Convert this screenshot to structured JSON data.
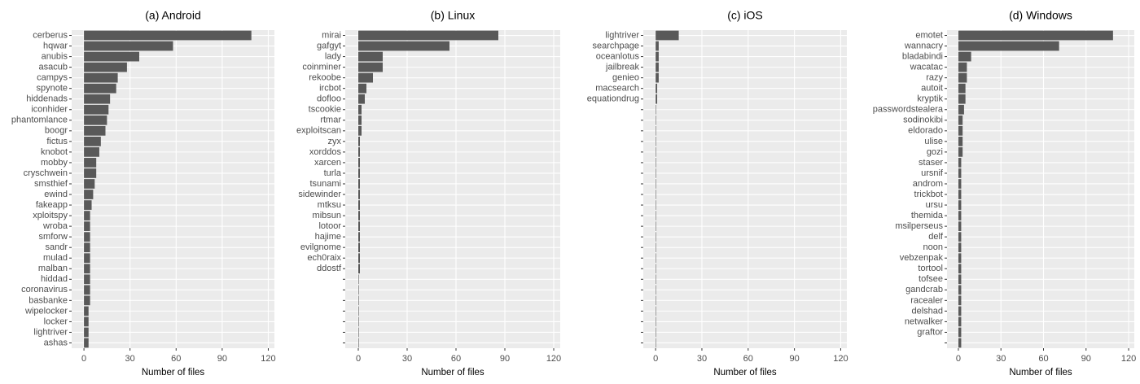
{
  "chart_data": [
    {
      "type": "bar",
      "orientation": "horizontal",
      "title": "(a) Android",
      "x_label": "Number of files",
      "color": "#595959",
      "background": "#ebebeb",
      "grid": true,
      "categories": [
        "cerberus",
        "hqwar",
        "anubis",
        "asacub",
        "campys",
        "spynote",
        "hiddenads",
        "iconhider",
        "phantomlance",
        "boogr",
        "fictus",
        "knobot",
        "mobby",
        "cryschwein",
        "smsthief",
        "ewind",
        "fakeapp",
        "xploitspy",
        "wroba",
        "smforw",
        "sandr",
        "mulad",
        "malban",
        "hiddad",
        "coronavirus",
        "basbanke",
        "wipelocker",
        "locker",
        "lightriver",
        "ashas"
      ],
      "values": [
        109,
        58,
        36,
        28,
        22,
        21,
        17,
        16,
        15,
        14,
        11,
        10,
        8,
        8,
        7,
        6,
        5,
        4,
        4,
        4,
        4,
        4,
        4,
        4,
        4,
        4,
        3,
        3,
        3,
        3
      ],
      "xlim": [
        -8,
        124
      ],
      "xticks": [
        0,
        30,
        60,
        90,
        120
      ]
    },
    {
      "type": "bar",
      "orientation": "horizontal",
      "title": "(b) Linux",
      "x_label": "Number of files",
      "color": "#595959",
      "background": "#ebebeb",
      "grid": true,
      "categories": [
        "mirai",
        "gafgyt",
        "lady",
        "coinminer",
        "rekoobe",
        "ircbot",
        "dofloo",
        "tscookie",
        "rtmar",
        "exploitscan",
        "zyx",
        "xorddos",
        "xarcen",
        "turla",
        "tsunami",
        "sidewinder",
        "mtksu",
        "mibsun",
        "lotoor",
        "hajime",
        "evilgnome",
        "ech0raix",
        "ddostf",
        null,
        null,
        null,
        null,
        null,
        null,
        null
      ],
      "values": [
        86,
        56,
        15,
        15,
        9,
        5,
        4,
        2,
        2,
        2,
        1,
        1,
        1,
        1,
        1,
        1,
        1,
        1,
        1,
        1,
        1,
        1,
        1,
        0,
        0,
        0,
        0,
        0,
        0,
        0
      ],
      "xlim": [
        -8,
        124
      ],
      "xticks": [
        0,
        30,
        60,
        90,
        120
      ]
    },
    {
      "type": "bar",
      "orientation": "horizontal",
      "title": "(c) iOS",
      "x_label": "Number of files",
      "color": "#595959",
      "background": "#ebebeb",
      "grid": true,
      "categories": [
        "lightriver",
        "searchpage",
        "oceanlotus",
        "jailbreak",
        "genieo",
        "macsearch",
        "equationdrug",
        null,
        null,
        null,
        null,
        null,
        null,
        null,
        null,
        null,
        null,
        null,
        null,
        null,
        null,
        null,
        null,
        null,
        null,
        null,
        null,
        null,
        null,
        null
      ],
      "values": [
        15,
        2,
        2,
        2,
        2,
        1,
        1,
        0,
        0,
        0,
        0,
        0,
        0,
        0,
        0,
        0,
        0,
        0,
        0,
        0,
        0,
        0,
        0,
        0,
        0,
        0,
        0,
        0,
        0,
        0
      ],
      "xlim": [
        -8,
        124
      ],
      "xticks": [
        0,
        30,
        60,
        90,
        120
      ]
    },
    {
      "type": "bar",
      "orientation": "horizontal",
      "title": "(d) Windows",
      "x_label": "Number of files",
      "color": "#595959",
      "background": "#ebebeb",
      "grid": true,
      "categories": [
        "emotet",
        "wannacry",
        "bladabindi",
        "wacatac",
        "razy",
        "autoit",
        "kryptik",
        "passwordstealera",
        "sodinokibi",
        "eldorado",
        "ulise",
        "gozi",
        "staser",
        "ursnif",
        "androm",
        "trickbot",
        "ursu",
        "themida",
        "msilperseus",
        "delf",
        "noon",
        "vebzenpak",
        "tortool",
        "tofsee",
        "gandcrab",
        "racealer",
        "delshad",
        "netwalker",
        "graftor",
        null
      ],
      "values": [
        109,
        71,
        9,
        6,
        6,
        5,
        5,
        4,
        3,
        3,
        3,
        3,
        2,
        2,
        2,
        2,
        2,
        2,
        2,
        2,
        2,
        2,
        2,
        2,
        2,
        2,
        2,
        2,
        2,
        2
      ],
      "xlim": [
        -8,
        124
      ],
      "xticks": [
        0,
        30,
        60,
        90,
        120
      ]
    }
  ]
}
